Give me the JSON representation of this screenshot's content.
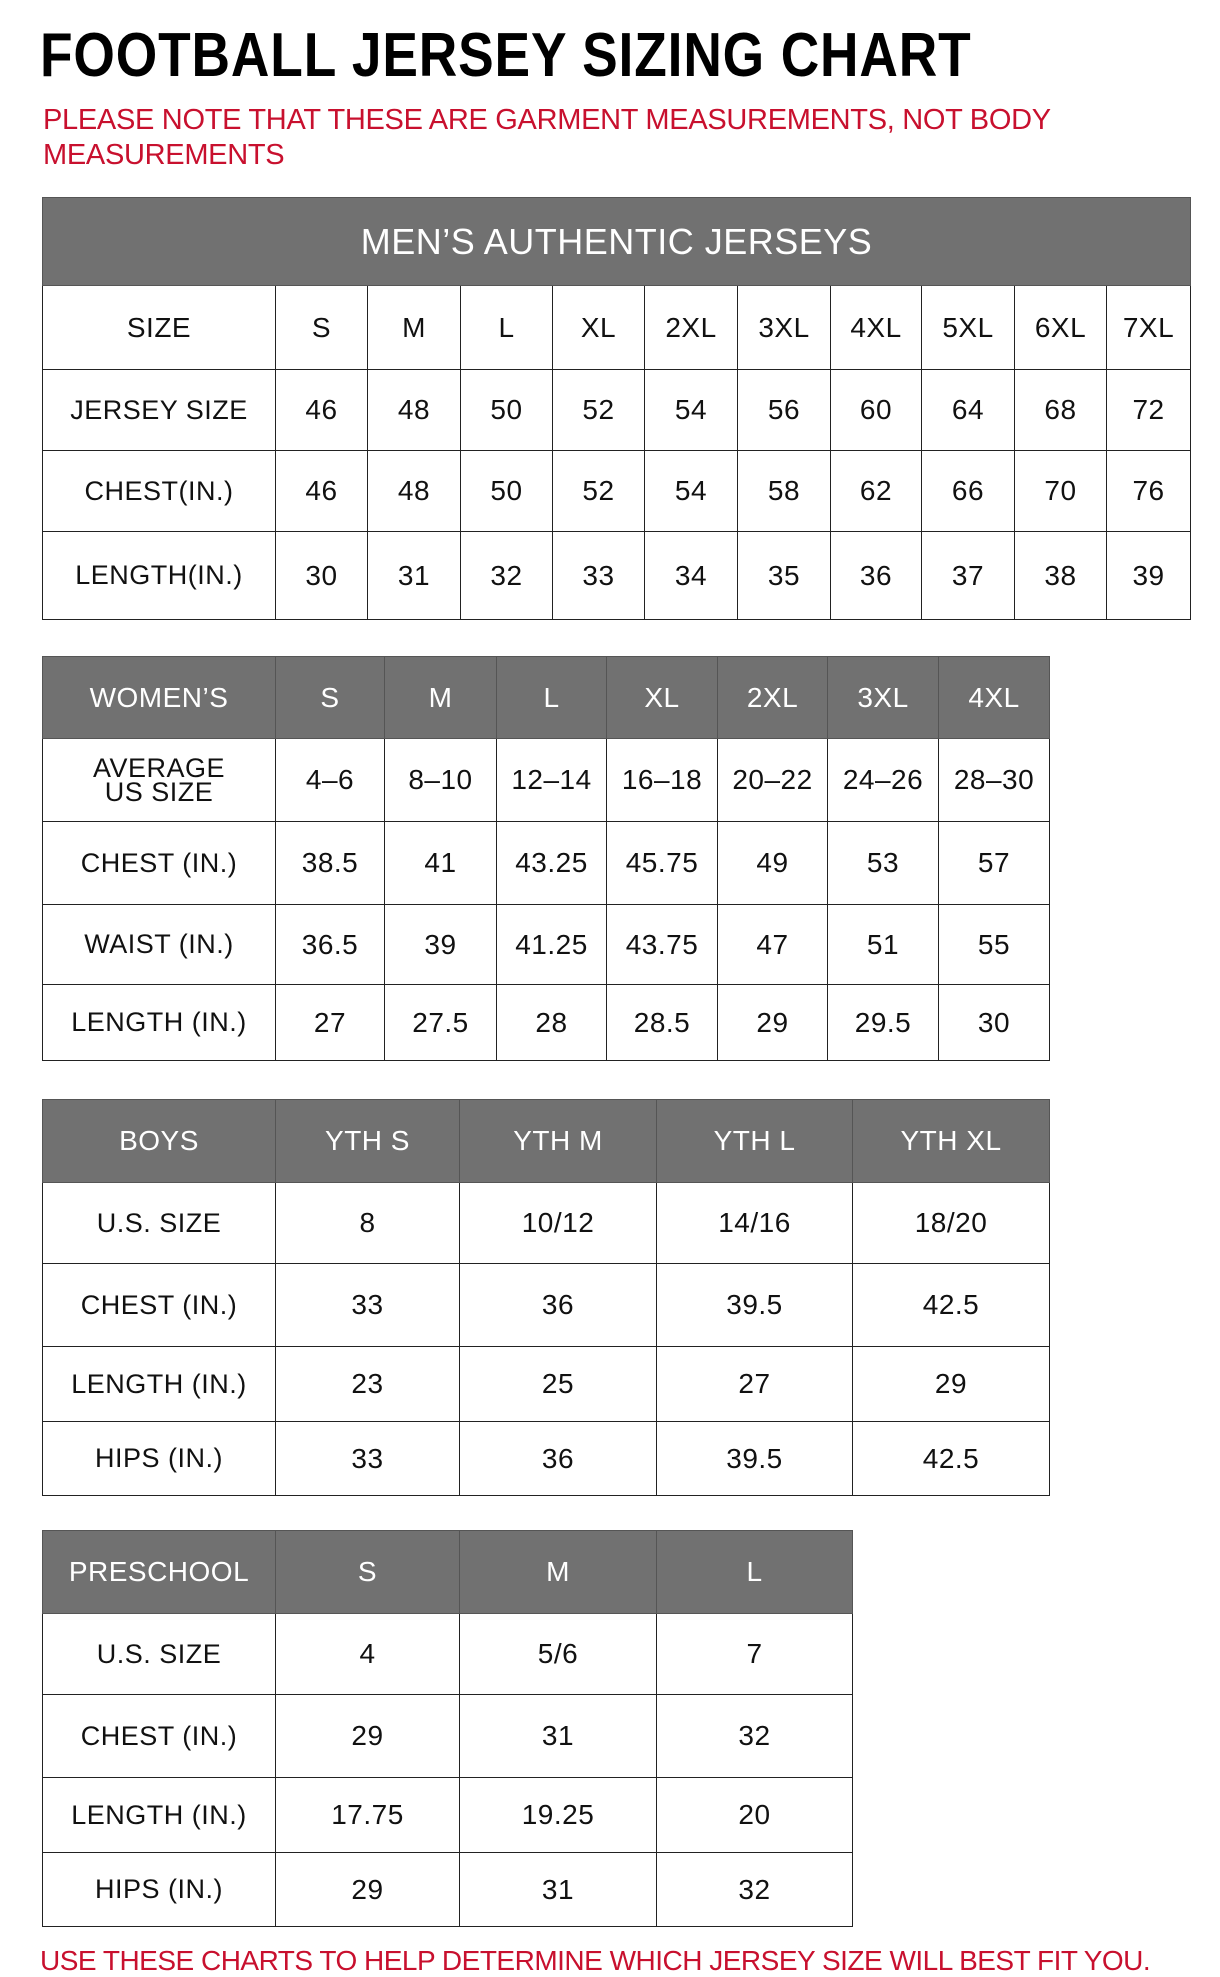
{
  "title": "FOOTBALL JERSEY SIZING CHART",
  "note": "PLEASE NOTE THAT THESE ARE GARMENT MEASUREMENTS, NOT BODY MEASUREMENTS",
  "footer": "USE THESE CHARTS TO HELP DETERMINE WHICH JERSEY SIZE WILL BEST FIT YOU.",
  "colors": {
    "header_bg": "#717171",
    "accent_red": "#c8102e"
  },
  "mens": {
    "caption": "MEN’S AUTHENTIC JERSEYS",
    "header": [
      "SIZE",
      "S",
      "M",
      "L",
      "XL",
      "2XL",
      "3XL",
      "4XL",
      "5XL",
      "6XL",
      "7XL"
    ],
    "rows": [
      [
        "JERSEY SIZE",
        "46",
        "48",
        "50",
        "52",
        "54",
        "56",
        "60",
        "64",
        "68",
        "72"
      ],
      [
        "CHEST(IN.)",
        "46",
        "48",
        "50",
        "52",
        "54",
        "58",
        "62",
        "66",
        "70",
        "76"
      ],
      [
        "LENGTH(IN.)",
        "30",
        "31",
        "32",
        "33",
        "34",
        "35",
        "36",
        "37",
        "38",
        "39"
      ]
    ]
  },
  "womens": {
    "header": [
      "WOMEN’S",
      "S",
      "M",
      "L",
      "XL",
      "2XL",
      "3XL",
      "4XL"
    ],
    "rows": [
      [
        "AVERAGE US SIZE",
        "4–6",
        "8–10",
        "12–14",
        "16–18",
        "20–22",
        "24–26",
        "28–30"
      ],
      [
        "CHEST (IN.)",
        "38.5",
        "41",
        "43.25",
        "45.75",
        "49",
        "53",
        "57"
      ],
      [
        "WAIST (IN.)",
        "36.5",
        "39",
        "41.25",
        "43.75",
        "47",
        "51",
        "55"
      ],
      [
        "LENGTH (IN.)",
        "27",
        "27.5",
        "28",
        "28.5",
        "29",
        "29.5",
        "30"
      ]
    ]
  },
  "boys": {
    "header": [
      "BOYS",
      "YTH S",
      "YTH M",
      "YTH L",
      "YTH XL"
    ],
    "rows": [
      [
        "U.S. SIZE",
        "8",
        "10/12",
        "14/16",
        "18/20"
      ],
      [
        "CHEST (IN.)",
        "33",
        "36",
        "39.5",
        "42.5"
      ],
      [
        "LENGTH (IN.)",
        "23",
        "25",
        "27",
        "29"
      ],
      [
        "HIPS (IN.)",
        "33",
        "36",
        "39.5",
        "42.5"
      ]
    ]
  },
  "preschool": {
    "header": [
      "PRESCHOOL",
      "S",
      "M",
      "L"
    ],
    "rows": [
      [
        "U.S. SIZE",
        "4",
        "5/6",
        "7"
      ],
      [
        "CHEST (IN.)",
        "29",
        "31",
        "32"
      ],
      [
        "LENGTH (IN.)",
        "17.75",
        "19.25",
        "20"
      ],
      [
        "HIPS (IN.)",
        "29",
        "31",
        "32"
      ]
    ]
  }
}
